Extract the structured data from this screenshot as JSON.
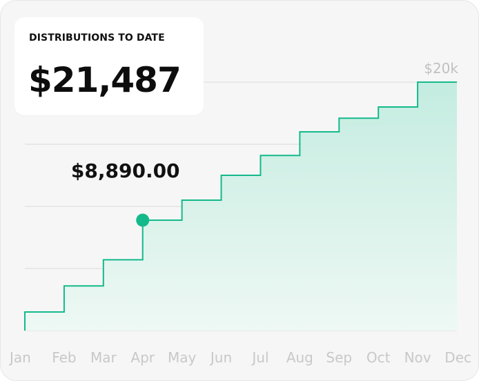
{
  "summary": {
    "label": "DISTRIBUTIONS TO DATE",
    "value": "$21,487"
  },
  "callout": {
    "label": "$8,890.00"
  },
  "colors": {
    "line": "#13b98a",
    "fill_top": "#c4ece0",
    "fill_bottom": "#eef8f4",
    "marker": "#13b98a"
  },
  "chart_data": {
    "type": "area",
    "step": true,
    "categories": [
      "Jan",
      "Feb",
      "Mar",
      "Apr",
      "May",
      "Jun",
      "Jul",
      "Aug",
      "Sep",
      "Oct",
      "Nov",
      "Dec"
    ],
    "values": [
      1500,
      3600,
      5700,
      8890,
      10500,
      12500,
      14100,
      16000,
      17100,
      18000,
      20000,
      21487
    ],
    "ylim": [
      0,
      20000
    ],
    "ytick_label": "$20k",
    "highlight_index": 3,
    "grid": true
  }
}
